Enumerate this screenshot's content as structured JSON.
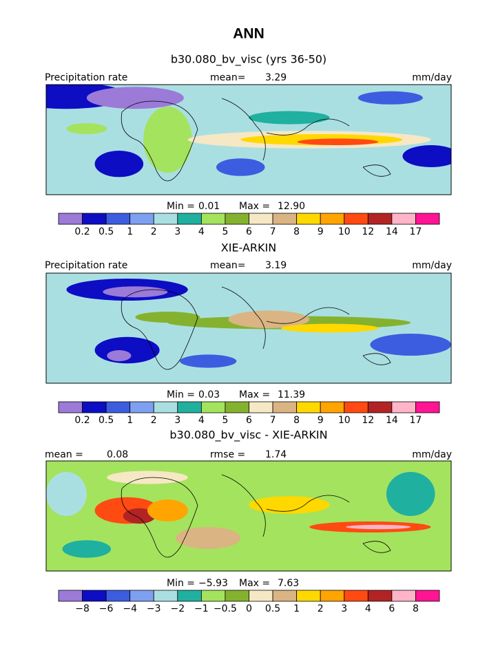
{
  "title": "ANN",
  "panels": [
    {
      "title": "b30.080_bv_visc (yrs 36-50)",
      "header": {
        "left_label": "Precipitation rate",
        "center_label": "mean=",
        "center_value": "3.29",
        "right": "mm/day"
      },
      "stats": {
        "min_label": "Min =",
        "min": "0.01",
        "max_label": "Max =",
        "max": "12.90"
      },
      "colorbar": {
        "colors": [
          "#9b7ad8",
          "#0d0dc4",
          "#3c5de0",
          "#7ea0f0",
          "#aadfe2",
          "#20b0a0",
          "#a4e35e",
          "#84b22e",
          "#f6e8c4",
          "#dab482",
          "#ffd800",
          "#ffa400",
          "#ff4a12",
          "#b22424",
          "#ffb4c8",
          "#ff1493"
        ],
        "labels": [
          "0.2",
          "0.5",
          "1",
          "2",
          "3",
          "4",
          "5",
          "6",
          "7",
          "8",
          "9",
          "10",
          "12",
          "14",
          "17"
        ]
      }
    },
    {
      "title": "XIE-ARKIN",
      "header": {
        "left_label": "Precipitation rate",
        "center_label": "mean=",
        "center_value": "3.19",
        "right": "mm/day"
      },
      "stats": {
        "min_label": "Min =",
        "min": "0.03",
        "max_label": "Max =",
        "max": "11.39"
      },
      "colorbar": {
        "colors": [
          "#9b7ad8",
          "#0d0dc4",
          "#3c5de0",
          "#7ea0f0",
          "#aadfe2",
          "#20b0a0",
          "#a4e35e",
          "#84b22e",
          "#f6e8c4",
          "#dab482",
          "#ffd800",
          "#ffa400",
          "#ff4a12",
          "#b22424",
          "#ffb4c8",
          "#ff1493"
        ],
        "labels": [
          "0.2",
          "0.5",
          "1",
          "2",
          "3",
          "4",
          "5",
          "6",
          "7",
          "8",
          "9",
          "10",
          "12",
          "14",
          "17"
        ]
      }
    },
    {
      "title": "b30.080_bv_visc - XIE-ARKIN",
      "header": {
        "left_label": "mean =",
        "left_value": "0.08",
        "center_label": "rmse =",
        "center_value": "1.74",
        "right": "mm/day"
      },
      "stats": {
        "min_label": "Min =",
        "min": "−5.93",
        "max_label": "Max =",
        "max": "7.63"
      },
      "colorbar": {
        "colors": [
          "#9b7ad8",
          "#0d0dc4",
          "#3c5de0",
          "#7ea0f0",
          "#aadfe2",
          "#20b0a0",
          "#a4e35e",
          "#84b22e",
          "#f6e8c4",
          "#dab482",
          "#ffd800",
          "#ffa400",
          "#ff4a12",
          "#b22424",
          "#ffb4c8",
          "#ff1493"
        ],
        "labels": [
          "−8",
          "−6",
          "−4",
          "−3",
          "−2",
          "−1",
          "−0.5",
          "0",
          "0.5",
          "1",
          "2",
          "3",
          "4",
          "6",
          "8"
        ]
      }
    }
  ]
}
